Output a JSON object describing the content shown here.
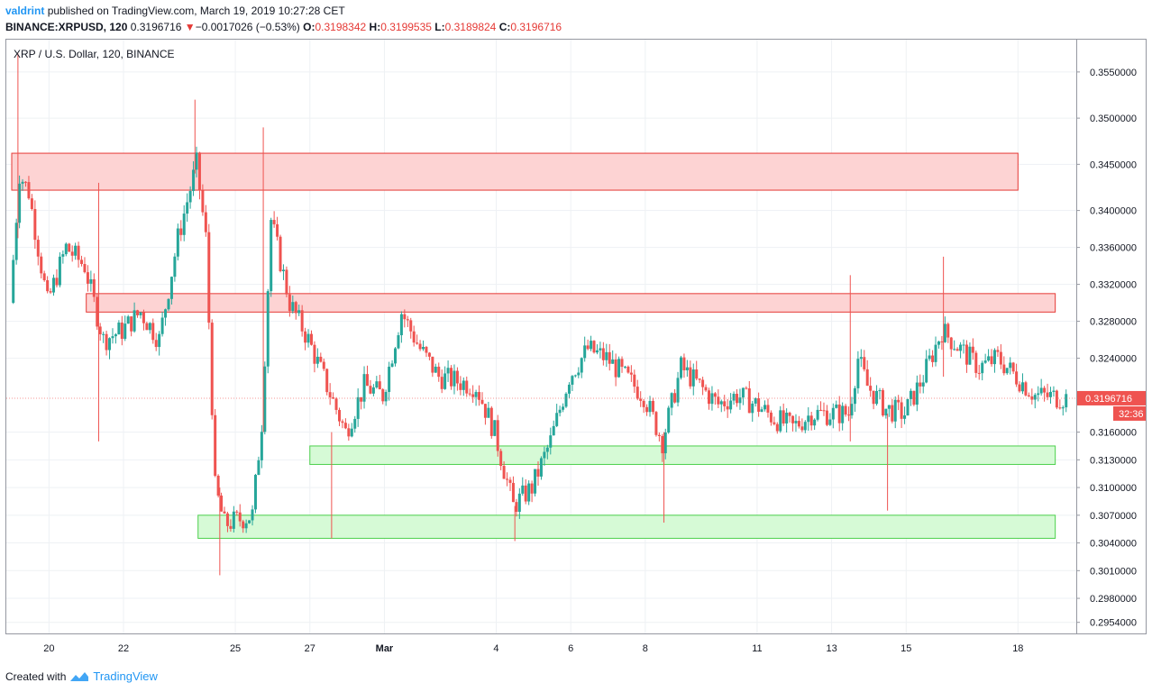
{
  "header": {
    "author": "valdrint",
    "published_text": "published on TradingView.com, March 19, 2019 10:27:28 CET",
    "symbol": "BINANCE:XRPUSD, 120",
    "last_price": "0.3196716",
    "change_arrow": "▼",
    "change": "−0.0017026 (−0.53%)",
    "ohlc": [
      {
        "k": "O:",
        "v": "0.3198342"
      },
      {
        "k": "H:",
        "v": "0.3199535"
      },
      {
        "k": "L:",
        "v": "0.3189824"
      },
      {
        "k": "C:",
        "v": "0.3196716"
      }
    ]
  },
  "footer": {
    "created_with": "Created with",
    "brand": "TradingView"
  },
  "colors": {
    "up": "#26a69a",
    "down": "#ef5350",
    "grid": "#eef1f4",
    "resistance_fill": "#fdd3d3",
    "resistance_stroke": "#e53935",
    "support_fill": "#d6fad6",
    "support_stroke": "#4cd04c",
    "price_tag": "#ef5350"
  },
  "chart_data": {
    "type": "candlestick",
    "title": "XRP / U.S. Dollar, 120, BINANCE",
    "x_ticks": [
      "20",
      "22",
      "25",
      "27",
      "Mar",
      "4",
      "6",
      "8",
      "11",
      "13",
      "15",
      "18"
    ],
    "y_ticks": [
      "0.3550000",
      "0.3500000",
      "0.3450000",
      "0.3400000",
      "0.3360000",
      "0.3320000",
      "0.3280000",
      "0.3240000",
      "0.3160000",
      "0.3130000",
      "0.3100000",
      "0.3070000",
      "0.3040000",
      "0.3010000",
      "0.2980000",
      "0.2954000"
    ],
    "ylim": [
      0.2942,
      0.3585
    ],
    "last_price_label": "0.3196716",
    "countdown_label": "32:36",
    "zones": [
      {
        "kind": "resistance",
        "from": "Feb 19",
        "to": "Mar 18",
        "low": 0.3422,
        "high": 0.3462
      },
      {
        "kind": "resistance",
        "from": "Feb 21",
        "to": "Mar 19",
        "low": 0.329,
        "high": 0.331
      },
      {
        "kind": "support",
        "from": "Feb 27",
        "to": "Mar 19",
        "low": 0.3125,
        "high": 0.3145
      },
      {
        "kind": "support",
        "from": "Feb 24",
        "to": "Mar 19",
        "low": 0.3045,
        "high": 0.307
      }
    ],
    "price_path": [
      {
        "t": "Feb 19 00:00",
        "p": 0.33
      },
      {
        "t": "Feb 19 06:00",
        "p": 0.344
      },
      {
        "t": "Feb 19 12:00",
        "p": 0.342
      },
      {
        "t": "Feb 20 00:00",
        "p": 0.33
      },
      {
        "t": "Feb 20 12:00",
        "p": 0.336
      },
      {
        "t": "Feb 21 00:00",
        "p": 0.334
      },
      {
        "t": "Feb 21 12:00",
        "p": 0.326
      },
      {
        "t": "Feb 22 00:00",
        "p": 0.327
      },
      {
        "t": "Feb 22 12:00",
        "p": 0.329
      },
      {
        "t": "Feb 23 00:00",
        "p": 0.326
      },
      {
        "t": "Feb 23 12:00",
        "p": 0.337
      },
      {
        "t": "Feb 24 00:00",
        "p": 0.345
      },
      {
        "t": "Feb 24 06:00",
        "p": 0.337
      },
      {
        "t": "Feb 24 12:00",
        "p": 0.31
      },
      {
        "t": "Feb 24 18:00",
        "p": 0.306
      },
      {
        "t": "Feb 25 12:00",
        "p": 0.307
      },
      {
        "t": "Feb 25 18:00",
        "p": 0.317
      },
      {
        "t": "Feb 26 00:00",
        "p": 0.339
      },
      {
        "t": "Feb 26 12:00",
        "p": 0.33
      },
      {
        "t": "Feb 27 00:00",
        "p": 0.326
      },
      {
        "t": "Feb 27 12:00",
        "p": 0.321
      },
      {
        "t": "Feb 28 00:00",
        "p": 0.316
      },
      {
        "t": "Feb 28 12:00",
        "p": 0.321
      },
      {
        "t": "Mar 01 00:00",
        "p": 0.32
      },
      {
        "t": "Mar 01 12:00",
        "p": 0.329
      },
      {
        "t": "Mar 02 00:00",
        "p": 0.325
      },
      {
        "t": "Mar 02 12:00",
        "p": 0.322
      },
      {
        "t": "Mar 03 12:00",
        "p": 0.321
      },
      {
        "t": "Mar 04 00:00",
        "p": 0.316
      },
      {
        "t": "Mar 04 12:00",
        "p": 0.308
      },
      {
        "t": "Mar 05 00:00",
        "p": 0.31
      },
      {
        "t": "Mar 05 12:00",
        "p": 0.315
      },
      {
        "t": "Mar 06 00:00",
        "p": 0.322
      },
      {
        "t": "Mar 06 12:00",
        "p": 0.325
      },
      {
        "t": "Mar 07 00:00",
        "p": 0.324
      },
      {
        "t": "Mar 07 12:00",
        "p": 0.322
      },
      {
        "t": "Mar 08 00:00",
        "p": 0.32
      },
      {
        "t": "Mar 08 12:00",
        "p": 0.315
      },
      {
        "t": "Mar 09 00:00",
        "p": 0.323
      },
      {
        "t": "Mar 09 12:00",
        "p": 0.321
      },
      {
        "t": "Mar 10 00:00",
        "p": 0.319
      },
      {
        "t": "Mar 10 12:00",
        "p": 0.32
      },
      {
        "t": "Mar 11 00:00",
        "p": 0.319
      },
      {
        "t": "Mar 11 12:00",
        "p": 0.3175
      },
      {
        "t": "Mar 12 00:00",
        "p": 0.3165
      },
      {
        "t": "Mar 12 12:00",
        "p": 0.318
      },
      {
        "t": "Mar 13 00:00",
        "p": 0.318
      },
      {
        "t": "Mar 13 12:00",
        "p": 0.318
      },
      {
        "t": "Mar 13 18:00",
        "p": 0.324
      },
      {
        "t": "Mar 14 00:00",
        "p": 0.321
      },
      {
        "t": "Mar 14 12:00",
        "p": 0.3185
      },
      {
        "t": "Mar 15 00:00",
        "p": 0.318
      },
      {
        "t": "Mar 15 12:00",
        "p": 0.322
      },
      {
        "t": "Mar 16 00:00",
        "p": 0.327
      },
      {
        "t": "Mar 16 12:00",
        "p": 0.325
      },
      {
        "t": "Mar 17 00:00",
        "p": 0.323
      },
      {
        "t": "Mar 17 12:00",
        "p": 0.324
      },
      {
        "t": "Mar 18 00:00",
        "p": 0.322
      },
      {
        "t": "Mar 18 12:00",
        "p": 0.32
      },
      {
        "t": "Mar 19 06:00",
        "p": 0.3197
      }
    ],
    "spikes": [
      {
        "t": "Feb 19 04:00",
        "low": 0.337,
        "high": 0.357
      },
      {
        "t": "Feb 21 08:00",
        "low": 0.315,
        "high": 0.343
      },
      {
        "t": "Feb 23 22:00",
        "low": 0.344,
        "high": 0.352
      },
      {
        "t": "Feb 24 14:00",
        "low": 0.3005,
        "high": 0.31
      },
      {
        "t": "Feb 25 18:00",
        "low": 0.316,
        "high": 0.349
      },
      {
        "t": "Feb 27 14:00",
        "low": 0.3045,
        "high": 0.316
      },
      {
        "t": "Mar 04 12:00",
        "low": 0.3042,
        "high": 0.308
      },
      {
        "t": "Mar 08 12:00",
        "low": 0.3062,
        "high": 0.316
      },
      {
        "t": "Mar 13 12:00",
        "low": 0.315,
        "high": 0.333
      },
      {
        "t": "Mar 14 12:00",
        "low": 0.3075,
        "high": 0.318
      },
      {
        "t": "Mar 16 00:00",
        "low": 0.322,
        "high": 0.335
      }
    ]
  }
}
